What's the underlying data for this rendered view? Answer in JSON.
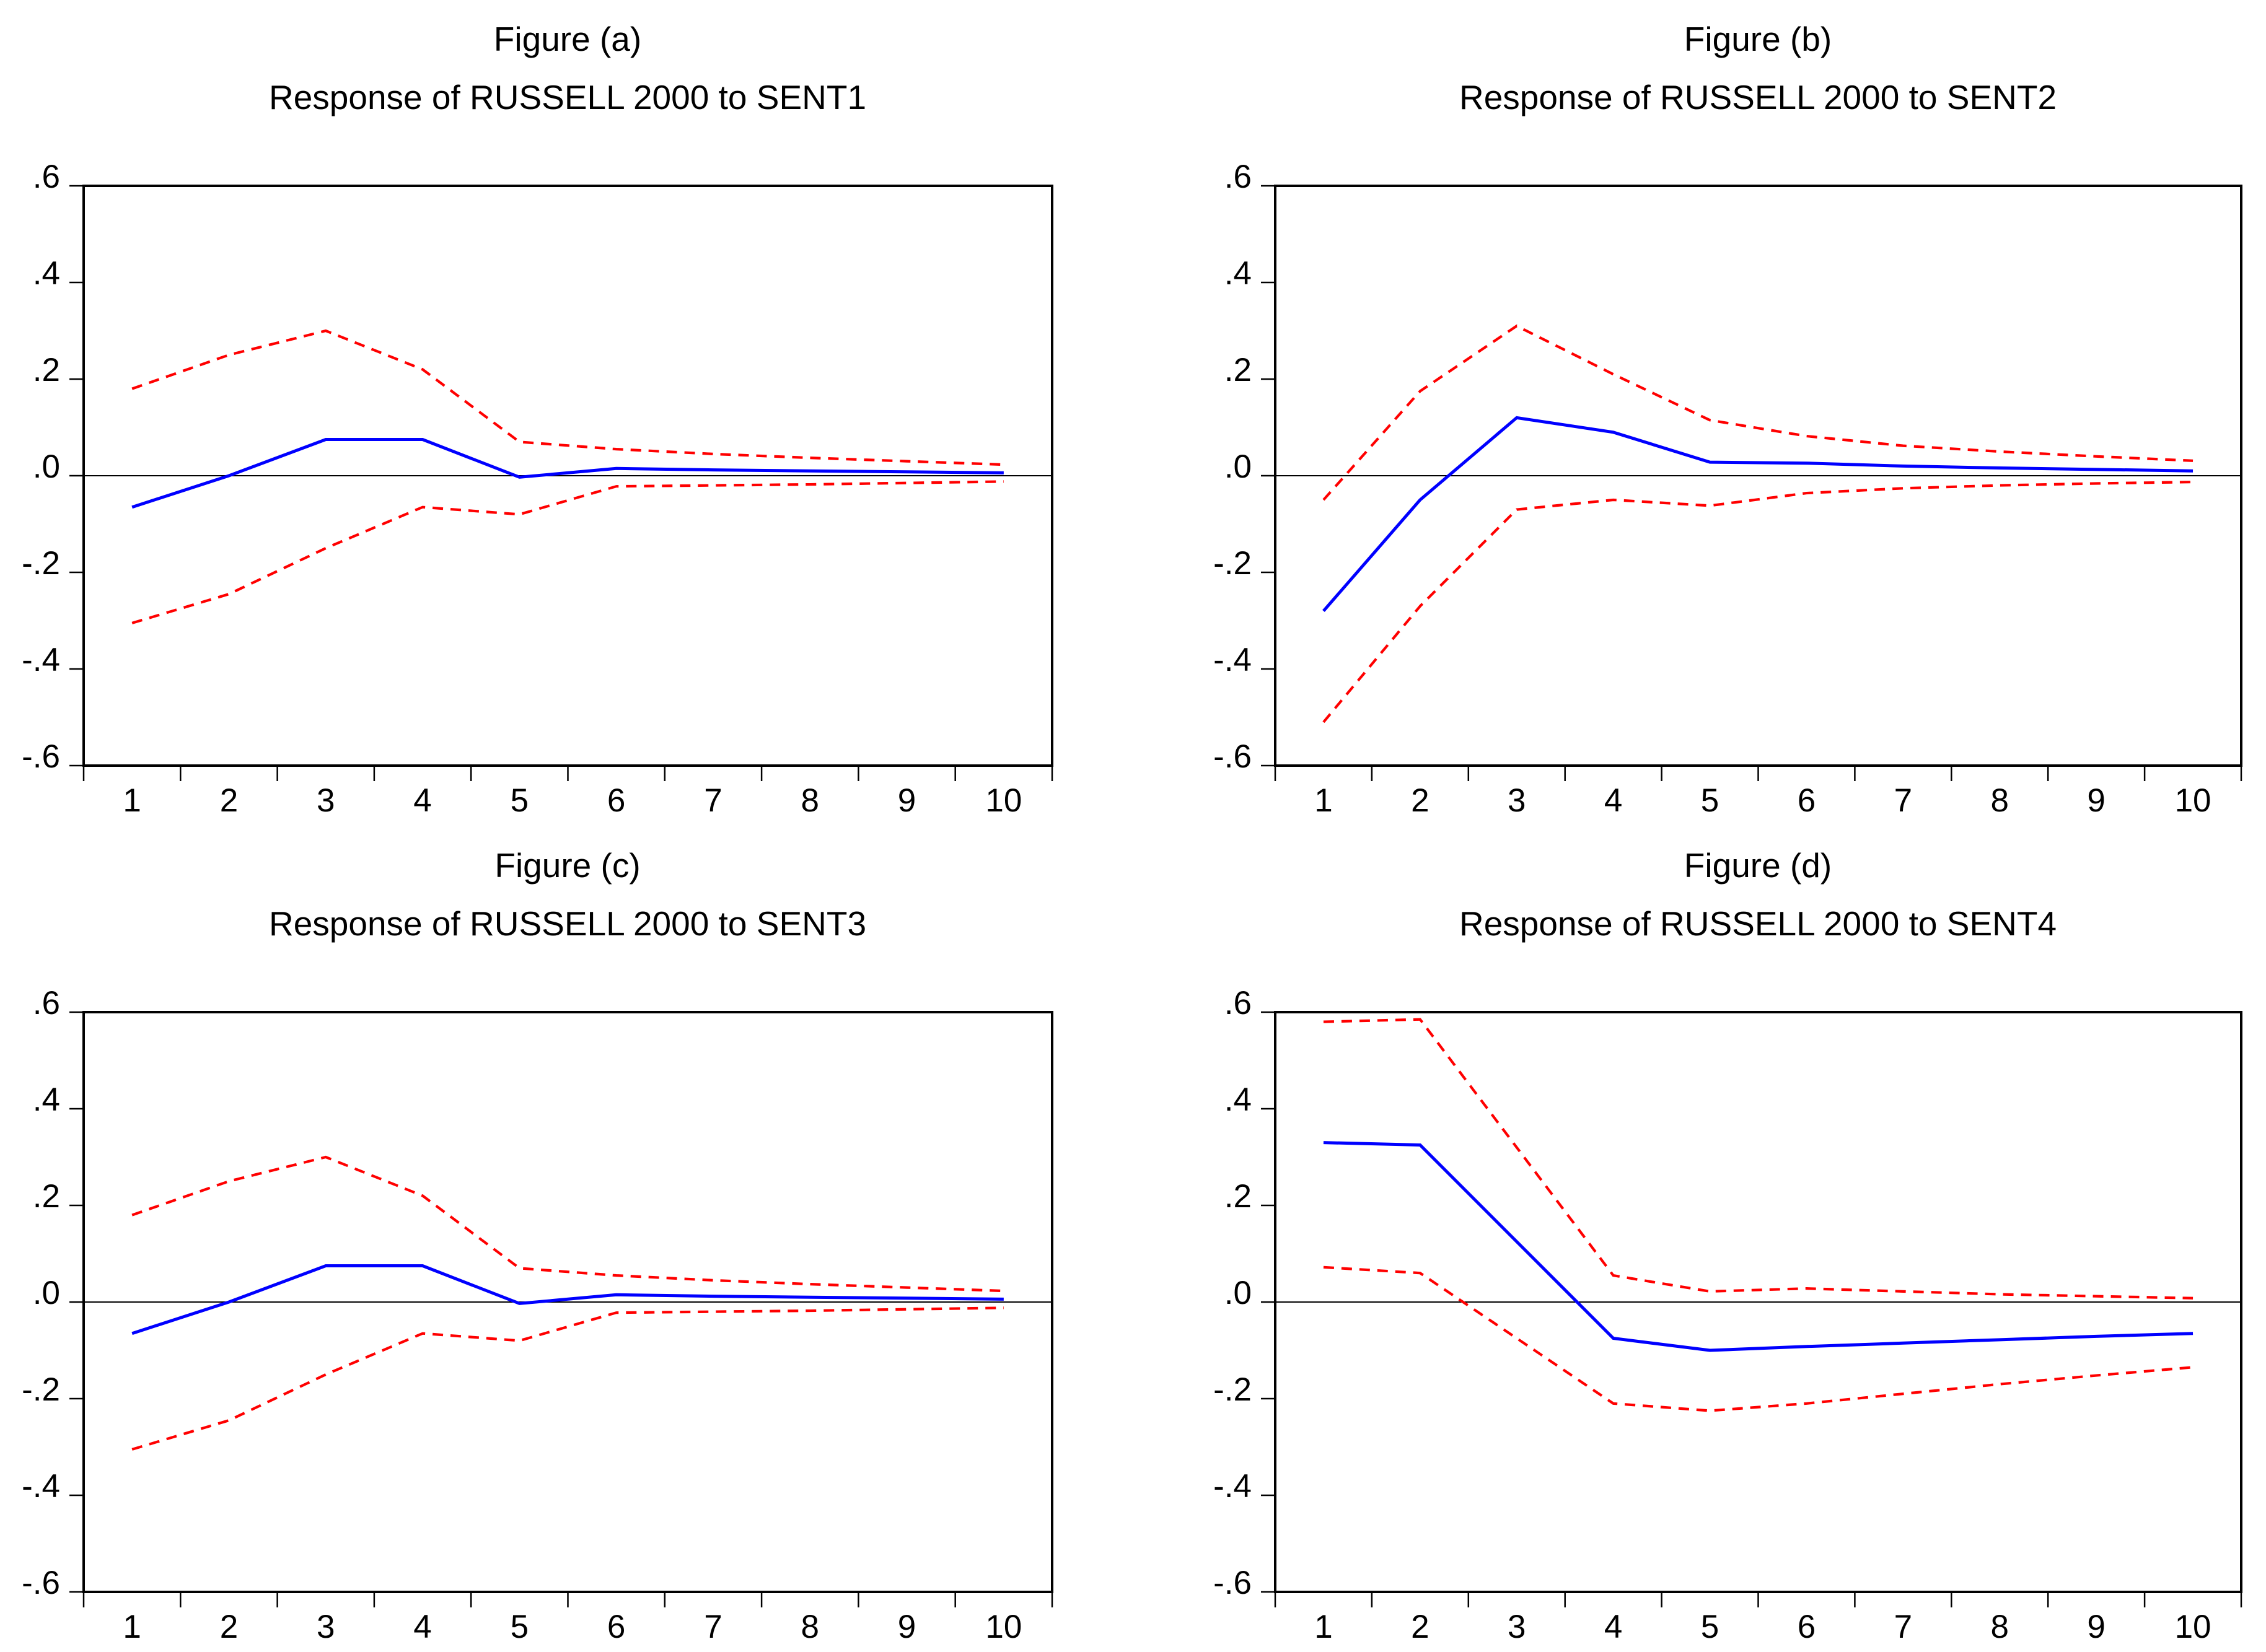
{
  "page": {
    "background": "#ffffff"
  },
  "colors": {
    "response_line": "#0000ff",
    "confidence_band": "#ff0000",
    "axis": "#000000",
    "zero_line": "#000000"
  },
  "axes": {
    "y_tick_labels": [
      ".6",
      ".4",
      ".2",
      ".0",
      "-.2",
      "-.4",
      "-.6"
    ],
    "y_tick_values": [
      0.6,
      0.4,
      0.2,
      0.0,
      -0.2,
      -0.4,
      -0.6
    ],
    "x_tick_labels": [
      "1",
      "2",
      "3",
      "4",
      "5",
      "6",
      "7",
      "8",
      "9",
      "10"
    ],
    "ylim": [
      -0.6,
      0.6
    ]
  },
  "panels": [
    {
      "figure_label": "Figure (a)",
      "title": "Response of RUSSELL 2000 to SENT1"
    },
    {
      "figure_label": "Figure (b)",
      "title": "Response of RUSSELL 2000 to SENT2"
    },
    {
      "figure_label": "Figure (c)",
      "title": "Response of RUSSELL 2000 to SENT3"
    },
    {
      "figure_label": "Figure (d)",
      "title": "Response of RUSSELL 2000 to SENT4"
    }
  ],
  "chart_data": [
    {
      "type": "line",
      "title": "Figure (a)",
      "subtitle": "Response of RUSSELL 2000 to SENT1",
      "x": [
        1,
        2,
        3,
        4,
        5,
        6,
        7,
        8,
        9,
        10
      ],
      "ylim": [
        -0.6,
        0.6
      ],
      "xlabel": "",
      "ylabel": "",
      "legend": "none",
      "grid": "zero-line-only",
      "series": [
        {
          "name": "response",
          "color": "#0000ff",
          "style": "solid",
          "values": [
            -0.065,
            0.0,
            0.075,
            0.075,
            -0.003,
            0.015,
            0.012,
            0.01,
            0.008,
            0.006
          ]
        },
        {
          "name": "upper-band",
          "color": "#ff0000",
          "style": "dashed",
          "values": [
            0.18,
            0.25,
            0.3,
            0.22,
            0.07,
            0.055,
            0.045,
            0.037,
            0.03,
            0.023
          ]
        },
        {
          "name": "lower-band",
          "color": "#ff0000",
          "style": "dashed",
          "values": [
            -0.305,
            -0.245,
            -0.15,
            -0.065,
            -0.08,
            -0.022,
            -0.02,
            -0.018,
            -0.015,
            -0.012
          ]
        }
      ]
    },
    {
      "type": "line",
      "title": "Figure (b)",
      "subtitle": "Response of RUSSELL 2000 to SENT2",
      "x": [
        1,
        2,
        3,
        4,
        5,
        6,
        7,
        8,
        9,
        10
      ],
      "ylim": [
        -0.6,
        0.6
      ],
      "xlabel": "",
      "ylabel": "",
      "legend": "none",
      "grid": "zero-line-only",
      "series": [
        {
          "name": "response",
          "color": "#0000ff",
          "style": "solid",
          "values": [
            -0.28,
            -0.05,
            0.12,
            0.09,
            0.028,
            0.026,
            0.02,
            0.016,
            0.013,
            0.01
          ]
        },
        {
          "name": "upper-band",
          "color": "#ff0000",
          "style": "dashed",
          "values": [
            -0.05,
            0.175,
            0.31,
            0.21,
            0.115,
            0.082,
            0.062,
            0.05,
            0.04,
            0.031
          ]
        },
        {
          "name": "lower-band",
          "color": "#ff0000",
          "style": "dashed",
          "values": [
            -0.51,
            -0.27,
            -0.07,
            -0.05,
            -0.062,
            -0.036,
            -0.026,
            -0.02,
            -0.016,
            -0.013
          ]
        }
      ]
    },
    {
      "type": "line",
      "title": "Figure (c)",
      "subtitle": "Response of RUSSELL 2000 to SENT3",
      "x": [
        1,
        2,
        3,
        4,
        5,
        6,
        7,
        8,
        9,
        10
      ],
      "ylim": [
        -0.6,
        0.6
      ],
      "xlabel": "",
      "ylabel": "",
      "legend": "none",
      "grid": "zero-line-only",
      "series": [
        {
          "name": "response",
          "color": "#0000ff",
          "style": "solid",
          "values": [
            -0.065,
            0.0,
            0.075,
            0.075,
            -0.003,
            0.015,
            0.012,
            0.01,
            0.008,
            0.006
          ]
        },
        {
          "name": "upper-band",
          "color": "#ff0000",
          "style": "dashed",
          "values": [
            0.18,
            0.25,
            0.3,
            0.22,
            0.07,
            0.055,
            0.045,
            0.037,
            0.03,
            0.023
          ]
        },
        {
          "name": "lower-band",
          "color": "#ff0000",
          "style": "dashed",
          "values": [
            -0.305,
            -0.245,
            -0.15,
            -0.065,
            -0.08,
            -0.022,
            -0.02,
            -0.018,
            -0.015,
            -0.012
          ]
        }
      ]
    },
    {
      "type": "line",
      "title": "Figure (d)",
      "subtitle": "Response of RUSSELL 2000 to SENT4",
      "x": [
        1,
        2,
        3,
        4,
        5,
        6,
        7,
        8,
        9,
        10
      ],
      "ylim": [
        -0.6,
        0.6
      ],
      "xlabel": "",
      "ylabel": "",
      "legend": "none",
      "grid": "zero-line-only",
      "series": [
        {
          "name": "response",
          "color": "#0000ff",
          "style": "solid",
          "values": [
            0.33,
            0.325,
            0.125,
            -0.075,
            -0.1,
            -0.092,
            -0.085,
            -0.078,
            -0.071,
            -0.065
          ]
        },
        {
          "name": "upper-band",
          "color": "#ff0000",
          "style": "dashed",
          "values": [
            0.58,
            0.585,
            0.32,
            0.055,
            0.022,
            0.028,
            0.022,
            0.016,
            0.012,
            0.008
          ]
        },
        {
          "name": "lower-band",
          "color": "#ff0000",
          "style": "dashed",
          "values": [
            0.072,
            0.06,
            -0.075,
            -0.21,
            -0.225,
            -0.21,
            -0.19,
            -0.17,
            -0.152,
            -0.135
          ]
        }
      ]
    }
  ]
}
